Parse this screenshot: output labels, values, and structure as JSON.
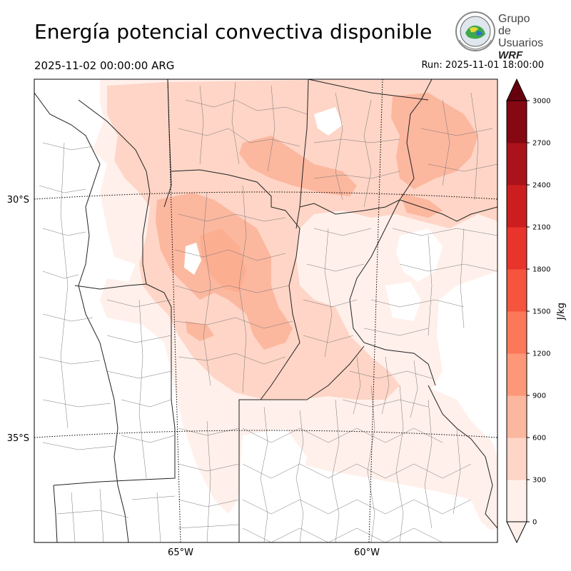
{
  "header": {
    "title": "Energía potencial convectiva disponible",
    "valid_time": "2025-11-02 00:00:00 ARG",
    "run": "Run: 2025-11-01 18:00:00"
  },
  "logo": {
    "line1": "Grupo de",
    "line2": "Usuarios",
    "line3": "WRF"
  },
  "map": {
    "lat_labels": [
      "30°S",
      "35°S"
    ],
    "lon_labels": [
      "65°W",
      "60°W"
    ]
  },
  "colorbar": {
    "unit": "J/kg",
    "ticks": [
      "0",
      "300",
      "600",
      "900",
      "1200",
      "1500",
      "1800",
      "2100",
      "2400",
      "2700",
      "3000"
    ],
    "colors": [
      "#fff0eb",
      "#fed5c6",
      "#fcb79f",
      "#fc9878",
      "#fb7858",
      "#f5553d",
      "#e9342b",
      "#cd1e1f",
      "#ab131a",
      "#850812"
    ],
    "overflow_color": "#67000d"
  }
}
